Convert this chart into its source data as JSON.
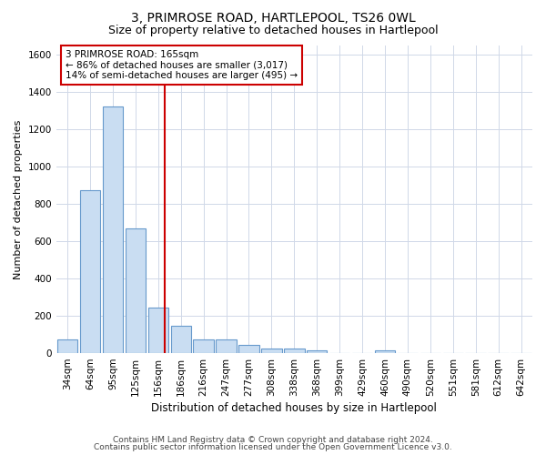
{
  "title1": "3, PRIMROSE ROAD, HARTLEPOOL, TS26 0WL",
  "title2": "Size of property relative to detached houses in Hartlepool",
  "xlabel": "Distribution of detached houses by size in Hartlepool",
  "ylabel": "Number of detached properties",
  "bin_labels": [
    "34sqm",
    "64sqm",
    "95sqm",
    "125sqm",
    "156sqm",
    "186sqm",
    "216sqm",
    "247sqm",
    "277sqm",
    "308sqm",
    "338sqm",
    "368sqm",
    "399sqm",
    "429sqm",
    "460sqm",
    "490sqm",
    "520sqm",
    "551sqm",
    "581sqm",
    "612sqm",
    "642sqm"
  ],
  "bar_heights": [
    75,
    875,
    1325,
    670,
    245,
    145,
    75,
    75,
    45,
    25,
    25,
    15,
    0,
    0,
    15,
    0,
    0,
    0,
    0,
    0,
    0
  ],
  "bar_color": "#c9ddf2",
  "bar_edge_color": "#6699cc",
  "annotation_text": "3 PRIMROSE ROAD: 165sqm\n← 86% of detached houses are smaller (3,017)\n14% of semi-detached houses are larger (495) →",
  "annotation_box_color": "white",
  "annotation_box_edge": "#cc0000",
  "red_line_color": "#cc0000",
  "ylim": [
    0,
    1650
  ],
  "yticks": [
    0,
    200,
    400,
    600,
    800,
    1000,
    1200,
    1400,
    1600
  ],
  "footer1": "Contains HM Land Registry data © Crown copyright and database right 2024.",
  "footer2": "Contains public sector information licensed under the Open Government Licence v3.0.",
  "background_color": "#ffffff",
  "grid_color": "#d0d8e8",
  "title1_fontsize": 10,
  "title2_fontsize": 9,
  "xlabel_fontsize": 8.5,
  "ylabel_fontsize": 8,
  "tick_fontsize": 7.5,
  "footer_fontsize": 6.5,
  "annot_fontsize": 7.5
}
